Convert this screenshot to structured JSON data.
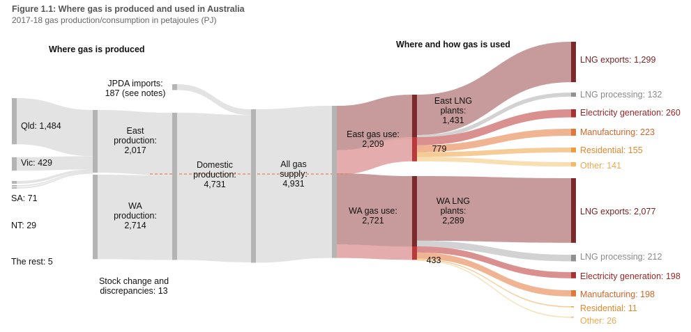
{
  "figure": {
    "title": "Figure 1.1: Where gas is produced and used in Australia",
    "subtitle": "2017-18 gas production/consumption in petajoules (PJ)"
  },
  "headings": {
    "left": "Where gas is produced",
    "right": "Where and how gas is used"
  },
  "colors": {
    "grey_flow": "#e1e1e1",
    "grey_node": "#b4b4b4",
    "lng_flow": "#c49696",
    "lng_node": "#7a2a2a",
    "domestic_flow": "#e3a8a8",
    "domestic_node": "#b83a3a",
    "electricity": "#a83232",
    "manufacturing": "#e0783c",
    "residential": "#f09a3e",
    "other": "#f5b96a",
    "lng_processing": "#909090",
    "dash_line": "#e8825a"
  },
  "chart_data": {
    "type": "sankey",
    "title": "Figure 1.1: Where gas is produced and used in Australia",
    "subtitle": "2017-18 gas production/consumption in petajoules (PJ)",
    "unit": "PJ",
    "nodes": [
      {
        "id": "qld",
        "label": "Qld: 1,484",
        "value": 1484
      },
      {
        "id": "vic",
        "label": "Vic: 429",
        "value": 429
      },
      {
        "id": "sa",
        "label": "SA: 71",
        "value": 71
      },
      {
        "id": "nt",
        "label": "NT: 29",
        "value": 29
      },
      {
        "id": "rest",
        "label": "The rest: 5",
        "value": 5
      },
      {
        "id": "east_prod",
        "label": "East production: 2,017",
        "value": 2017
      },
      {
        "id": "wa_prod",
        "label": "WA production: 2,714",
        "value": 2714
      },
      {
        "id": "jpda",
        "label": "JPDA imports: 187 (see notes)",
        "value": 187
      },
      {
        "id": "domestic",
        "label": "Domestic production: 4,731",
        "value": 4731
      },
      {
        "id": "stock",
        "label": "Stock change and discrepancies: 13",
        "value": 13
      },
      {
        "id": "all",
        "label": "All gas supply: 4,931",
        "value": 4931
      },
      {
        "id": "east_use",
        "label": "East gas use: 2,209",
        "value": 2209
      },
      {
        "id": "wa_use",
        "label": "WA gas use: 2,721",
        "value": 2721
      },
      {
        "id": "east_lng",
        "label": "East LNG plants: 1,431",
        "value": 1431
      },
      {
        "id": "east_dom",
        "label": "779",
        "value": 779
      },
      {
        "id": "wa_lng",
        "label": "WA LNG plants: 2,289",
        "value": 2289
      },
      {
        "id": "wa_dom",
        "label": "433",
        "value": 433
      },
      {
        "id": "e_lng_exp",
        "label": "LNG exports: 1,299",
        "value": 1299
      },
      {
        "id": "e_lng_proc",
        "label": "LNG processing: 132",
        "value": 132
      },
      {
        "id": "e_elec",
        "label": "Electricity generation: 260",
        "value": 260
      },
      {
        "id": "e_manu",
        "label": "Manufacturing: 223",
        "value": 223
      },
      {
        "id": "e_res",
        "label": "Residential: 155",
        "value": 155
      },
      {
        "id": "e_other",
        "label": "Other: 141",
        "value": 141
      },
      {
        "id": "w_lng_exp",
        "label": "LNG exports: 2,077",
        "value": 2077
      },
      {
        "id": "w_lng_proc",
        "label": "LNG processing: 212",
        "value": 212
      },
      {
        "id": "w_elec",
        "label": "Electricity generation: 198",
        "value": 198
      },
      {
        "id": "w_manu",
        "label": "Manufacturing: 198",
        "value": 198
      },
      {
        "id": "w_res",
        "label": "Residential: 11",
        "value": 11
      },
      {
        "id": "w_other",
        "label": "Other: 26",
        "value": 26
      }
    ],
    "links": [
      {
        "source": "qld",
        "target": "east_prod",
        "value": 1484
      },
      {
        "source": "vic",
        "target": "east_prod",
        "value": 429
      },
      {
        "source": "sa",
        "target": "east_prod",
        "value": 71
      },
      {
        "source": "nt",
        "target": "east_prod",
        "value": 29
      },
      {
        "source": "rest",
        "target": "east_prod",
        "value": 5
      },
      {
        "source": "east_prod",
        "target": "domestic",
        "value": 2017
      },
      {
        "source": "wa_prod",
        "target": "domestic",
        "value": 2714
      },
      {
        "source": "jpda",
        "target": "all",
        "value": 187
      },
      {
        "source": "domestic",
        "target": "all",
        "value": 4731
      },
      {
        "source": "stock",
        "target": "all",
        "value": 13
      },
      {
        "source": "all",
        "target": "east_use",
        "value": 2209
      },
      {
        "source": "all",
        "target": "wa_use",
        "value": 2721
      },
      {
        "source": "east_use",
        "target": "east_lng",
        "value": 1431
      },
      {
        "source": "east_use",
        "target": "east_dom",
        "value": 779
      },
      {
        "source": "wa_use",
        "target": "wa_lng",
        "value": 2289
      },
      {
        "source": "wa_use",
        "target": "wa_dom",
        "value": 433
      },
      {
        "source": "east_lng",
        "target": "e_lng_exp",
        "value": 1299
      },
      {
        "source": "east_lng",
        "target": "e_lng_proc",
        "value": 132
      },
      {
        "source": "east_dom",
        "target": "e_elec",
        "value": 260
      },
      {
        "source": "east_dom",
        "target": "e_manu",
        "value": 223
      },
      {
        "source": "east_dom",
        "target": "e_res",
        "value": 155
      },
      {
        "source": "east_dom",
        "target": "e_other",
        "value": 141
      },
      {
        "source": "wa_lng",
        "target": "w_lng_exp",
        "value": 2077
      },
      {
        "source": "wa_lng",
        "target": "w_lng_proc",
        "value": 212
      },
      {
        "source": "wa_dom",
        "target": "w_elec",
        "value": 198
      },
      {
        "source": "wa_dom",
        "target": "w_manu",
        "value": 198
      },
      {
        "source": "wa_dom",
        "target": "w_res",
        "value": 11
      },
      {
        "source": "wa_dom",
        "target": "w_other",
        "value": 26
      }
    ]
  }
}
